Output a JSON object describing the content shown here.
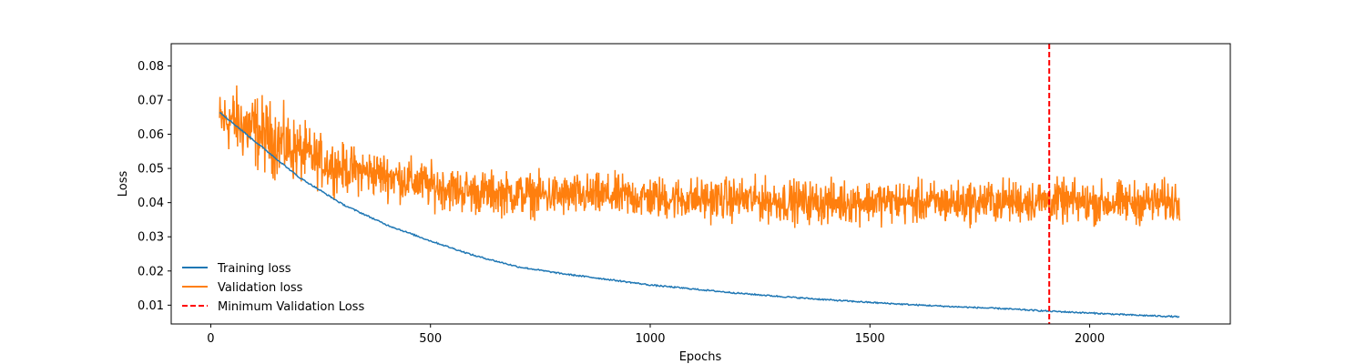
{
  "chart_data": {
    "type": "line",
    "title": "",
    "xlabel": "Epochs",
    "ylabel": "Loss",
    "xlim": [
      -90,
      2320
    ],
    "ylim": [
      0.0045,
      0.0865
    ],
    "xticks": [
      0,
      500,
      1000,
      1500,
      2000
    ],
    "yticks": [
      0.01,
      0.02,
      0.03,
      0.04,
      0.05,
      0.06,
      0.07,
      0.08
    ],
    "xtick_labels": [
      "0",
      "500",
      "1000",
      "1500",
      "2000"
    ],
    "ytick_labels": [
      "0.01",
      "0.02",
      "0.03",
      "0.04",
      "0.05",
      "0.06",
      "0.07",
      "0.08"
    ],
    "grid": false,
    "legend_position": "lower-left",
    "series": [
      {
        "name": "Training loss",
        "color": "#1f77b4",
        "x": [
          20,
          100,
          200,
          300,
          400,
          500,
          600,
          700,
          800,
          900,
          1000,
          1100,
          1200,
          1300,
          1400,
          1500,
          1600,
          1700,
          1800,
          1900,
          2000,
          2100,
          2205
        ],
        "values": [
          0.0665,
          0.058,
          0.0475,
          0.0395,
          0.0335,
          0.0288,
          0.0245,
          0.0212,
          0.0192,
          0.0176,
          0.0159,
          0.0147,
          0.0135,
          0.0125,
          0.0116,
          0.0108,
          0.0101,
          0.0095,
          0.009,
          0.0083,
          0.0077,
          0.0071,
          0.0066
        ]
      },
      {
        "name": "Validation loss",
        "color": "#ff7f0e",
        "x": [
          20,
          50,
          100,
          150,
          200,
          250,
          300,
          400,
          500,
          600,
          700,
          800,
          900,
          1000,
          1100,
          1200,
          1300,
          1400,
          1500,
          1600,
          1700,
          1800,
          1900,
          2000,
          2100,
          2205
        ],
        "values": [
          0.064,
          0.064,
          0.061,
          0.058,
          0.055,
          0.052,
          0.05,
          0.048,
          0.045,
          0.043,
          0.0425,
          0.042,
          0.042,
          0.0415,
          0.041,
          0.041,
          0.0405,
          0.04,
          0.0405,
          0.04,
          0.04,
          0.0405,
          0.0405,
          0.04,
          0.04,
          0.0405
        ],
        "noise_amplitude": [
          0.006,
          0.007,
          0.008,
          0.0075,
          0.0065,
          0.0055,
          0.005,
          0.0048,
          0.0047,
          0.0046,
          0.0045,
          0.0045,
          0.0045,
          0.0045,
          0.0045,
          0.0045,
          0.0045,
          0.0045,
          0.0045,
          0.0045,
          0.0045,
          0.0045,
          0.0045,
          0.0045,
          0.0045,
          0.0045
        ]
      },
      {
        "name": "Minimum Validation Loss",
        "color": "#ff0000",
        "style": "dashed",
        "type": "vertical-line",
        "x": 1908
      }
    ]
  }
}
